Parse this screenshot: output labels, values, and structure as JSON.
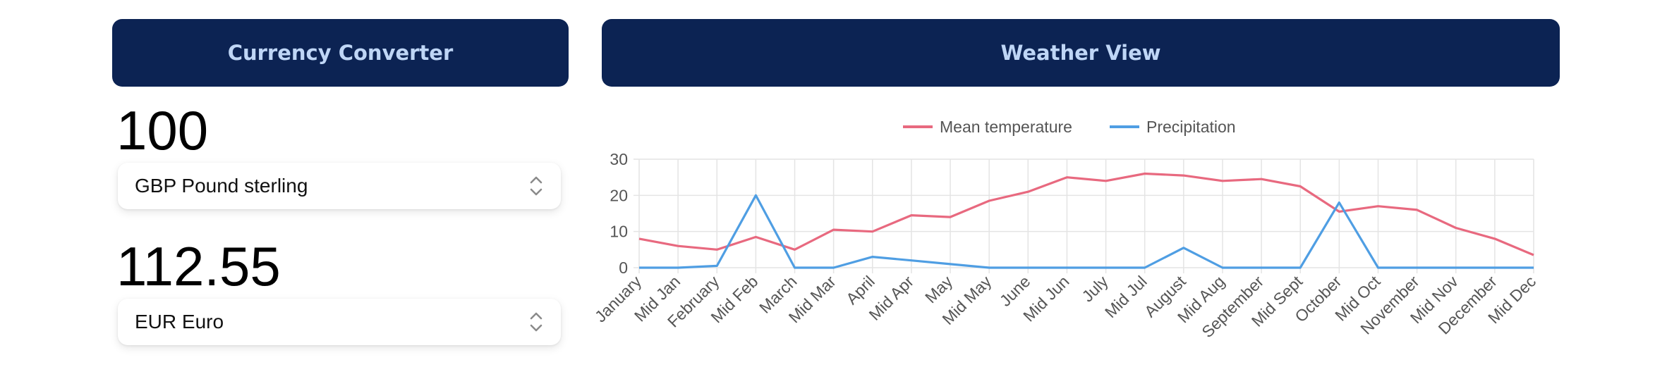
{
  "currency": {
    "title": "Currency Converter",
    "from_amount": "100",
    "from_currency": "GBP Pound sterling",
    "to_amount": "112.55",
    "to_currency": "EUR Euro"
  },
  "weather": {
    "title": "Weather View"
  },
  "colors": {
    "header_bg": "#0c2353",
    "header_text": "#bfd6f6",
    "temperature": "#e8697f",
    "precipitation": "#4f9ee3"
  },
  "icons": {
    "select": "chevron-up-down-icon"
  },
  "chart_data": {
    "type": "line",
    "categories": [
      "January",
      "Mid Jan",
      "February",
      "Mid Feb",
      "March",
      "Mid Mar",
      "April",
      "Mid Apr",
      "May",
      "Mid May",
      "June",
      "Mid Jun",
      "July",
      "Mid Jul",
      "August",
      "Mid Aug",
      "September",
      "Mid Sept",
      "October",
      "Mid Oct",
      "November",
      "Mid Nov",
      "December",
      "Mid Dec"
    ],
    "series": [
      {
        "name": "Mean temperature",
        "color": "#e8697f",
        "values": [
          8,
          6,
          5,
          8.5,
          5,
          10.5,
          10,
          14.5,
          14,
          18.5,
          21,
          25,
          24,
          26,
          25.5,
          24,
          24.5,
          22.5,
          15.5,
          17,
          16,
          11,
          8,
          3.5
        ]
      },
      {
        "name": "Precipitation",
        "color": "#4f9ee3",
        "values": [
          0,
          0,
          0.5,
          20,
          0,
          0,
          3,
          2,
          1,
          0,
          0,
          0,
          0,
          0,
          5.5,
          0,
          0,
          0,
          18,
          0,
          0,
          0,
          0,
          0
        ]
      }
    ],
    "ylim": [
      0,
      30
    ],
    "yticks": [
      0,
      10,
      20,
      30
    ],
    "grid": true,
    "legend": "top"
  }
}
